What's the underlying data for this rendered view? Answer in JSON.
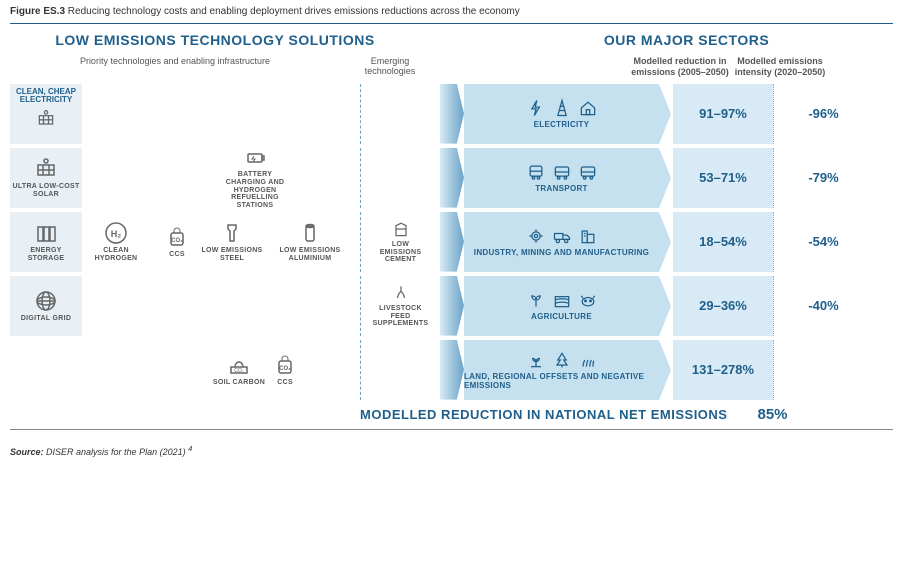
{
  "figure": {
    "number": "Figure ES.3",
    "caption": "Reducing technology costs and enabling deployment drives emissions reductions across the economy"
  },
  "headers": {
    "left": "LOW EMISSIONS TECHNOLOGY SOLUTIONS",
    "right": "OUR MAJOR SECTORS"
  },
  "subheaders": {
    "priority": "Priority technologies and enabling infrastructure",
    "emerging": "Emerging technologies",
    "reduction": "Modelled reduction in emissions (2005–2050)",
    "intensity": "Modelled emissions intensity (2020–2050)"
  },
  "leftColumn": {
    "title": "CLEAN, CHEAP ELECTRICITY",
    "items": [
      "ULTRA LOW-COST SOLAR",
      "ENERGY STORAGE",
      "DIGITAL GRID"
    ]
  },
  "hydrogen": {
    "label": "CLEAN HYDROGEN"
  },
  "rows": [
    {
      "mid": [],
      "emerging": null,
      "sector": {
        "label": "ELECTRICITY",
        "icons": [
          "bolt",
          "pylon",
          "house"
        ]
      },
      "reduction": "91–97%",
      "intensity": "-96%"
    },
    {
      "mid": [
        {
          "label": "BATTERY CHARGING AND HYDROGEN REFUELLING STATIONS",
          "icon": "battery"
        }
      ],
      "emerging": null,
      "sector": {
        "label": "TRANSPORT",
        "icons": [
          "train",
          "bus",
          "bus"
        ]
      },
      "reduction": "53–71%",
      "intensity": "-79%"
    },
    {
      "mid": [
        {
          "label": "CCS",
          "icon": "ccs"
        },
        {
          "label": "LOW EMISSIONS STEEL",
          "icon": "steel"
        },
        {
          "label": "LOW EMISSIONS ALUMINIUM",
          "icon": "can"
        }
      ],
      "emerging": {
        "label": "LOW EMISSIONS CEMENT",
        "icon": "cement"
      },
      "sector": {
        "label": "INDUSTRY, MINING AND MANUFACTURING",
        "icons": [
          "gear",
          "truck",
          "building"
        ]
      },
      "reduction": "18–54%",
      "intensity": "-54%"
    },
    {
      "mid": [],
      "emerging": {
        "label": "LIVESTOCK FEED SUPPLEMENTS",
        "icon": "feed"
      },
      "sector": {
        "label": "AGRICULTURE",
        "icons": [
          "plant",
          "field",
          "cow"
        ]
      },
      "reduction": "29–36%",
      "intensity": "-40%"
    },
    {
      "mid": [
        {
          "label": "SOIL CARBON",
          "icon": "soil"
        },
        {
          "label": "CCS",
          "icon": "ccs"
        }
      ],
      "emerging": null,
      "sector": {
        "label": "LAND, REGIONAL OFFSETS AND NEGATIVE EMISSIONS",
        "icons": [
          "sprout",
          "tree",
          "grass"
        ]
      },
      "reduction": "131–278%",
      "intensity": ""
    }
  ],
  "national": {
    "label": "MODELLED REDUCTION IN NATIONAL NET EMISSIONS",
    "value": "85%"
  },
  "source": {
    "prefix": "Source:",
    "text": "DISER analysis for the Plan (2021)",
    "sup": "4"
  },
  "colors": {
    "primary": "#1f5f8b",
    "sectorBg": "#c5e0ef",
    "reductionBg": "#d7eaf5",
    "leftColBg": "#e8f0f5",
    "iconStroke": "#666"
  }
}
